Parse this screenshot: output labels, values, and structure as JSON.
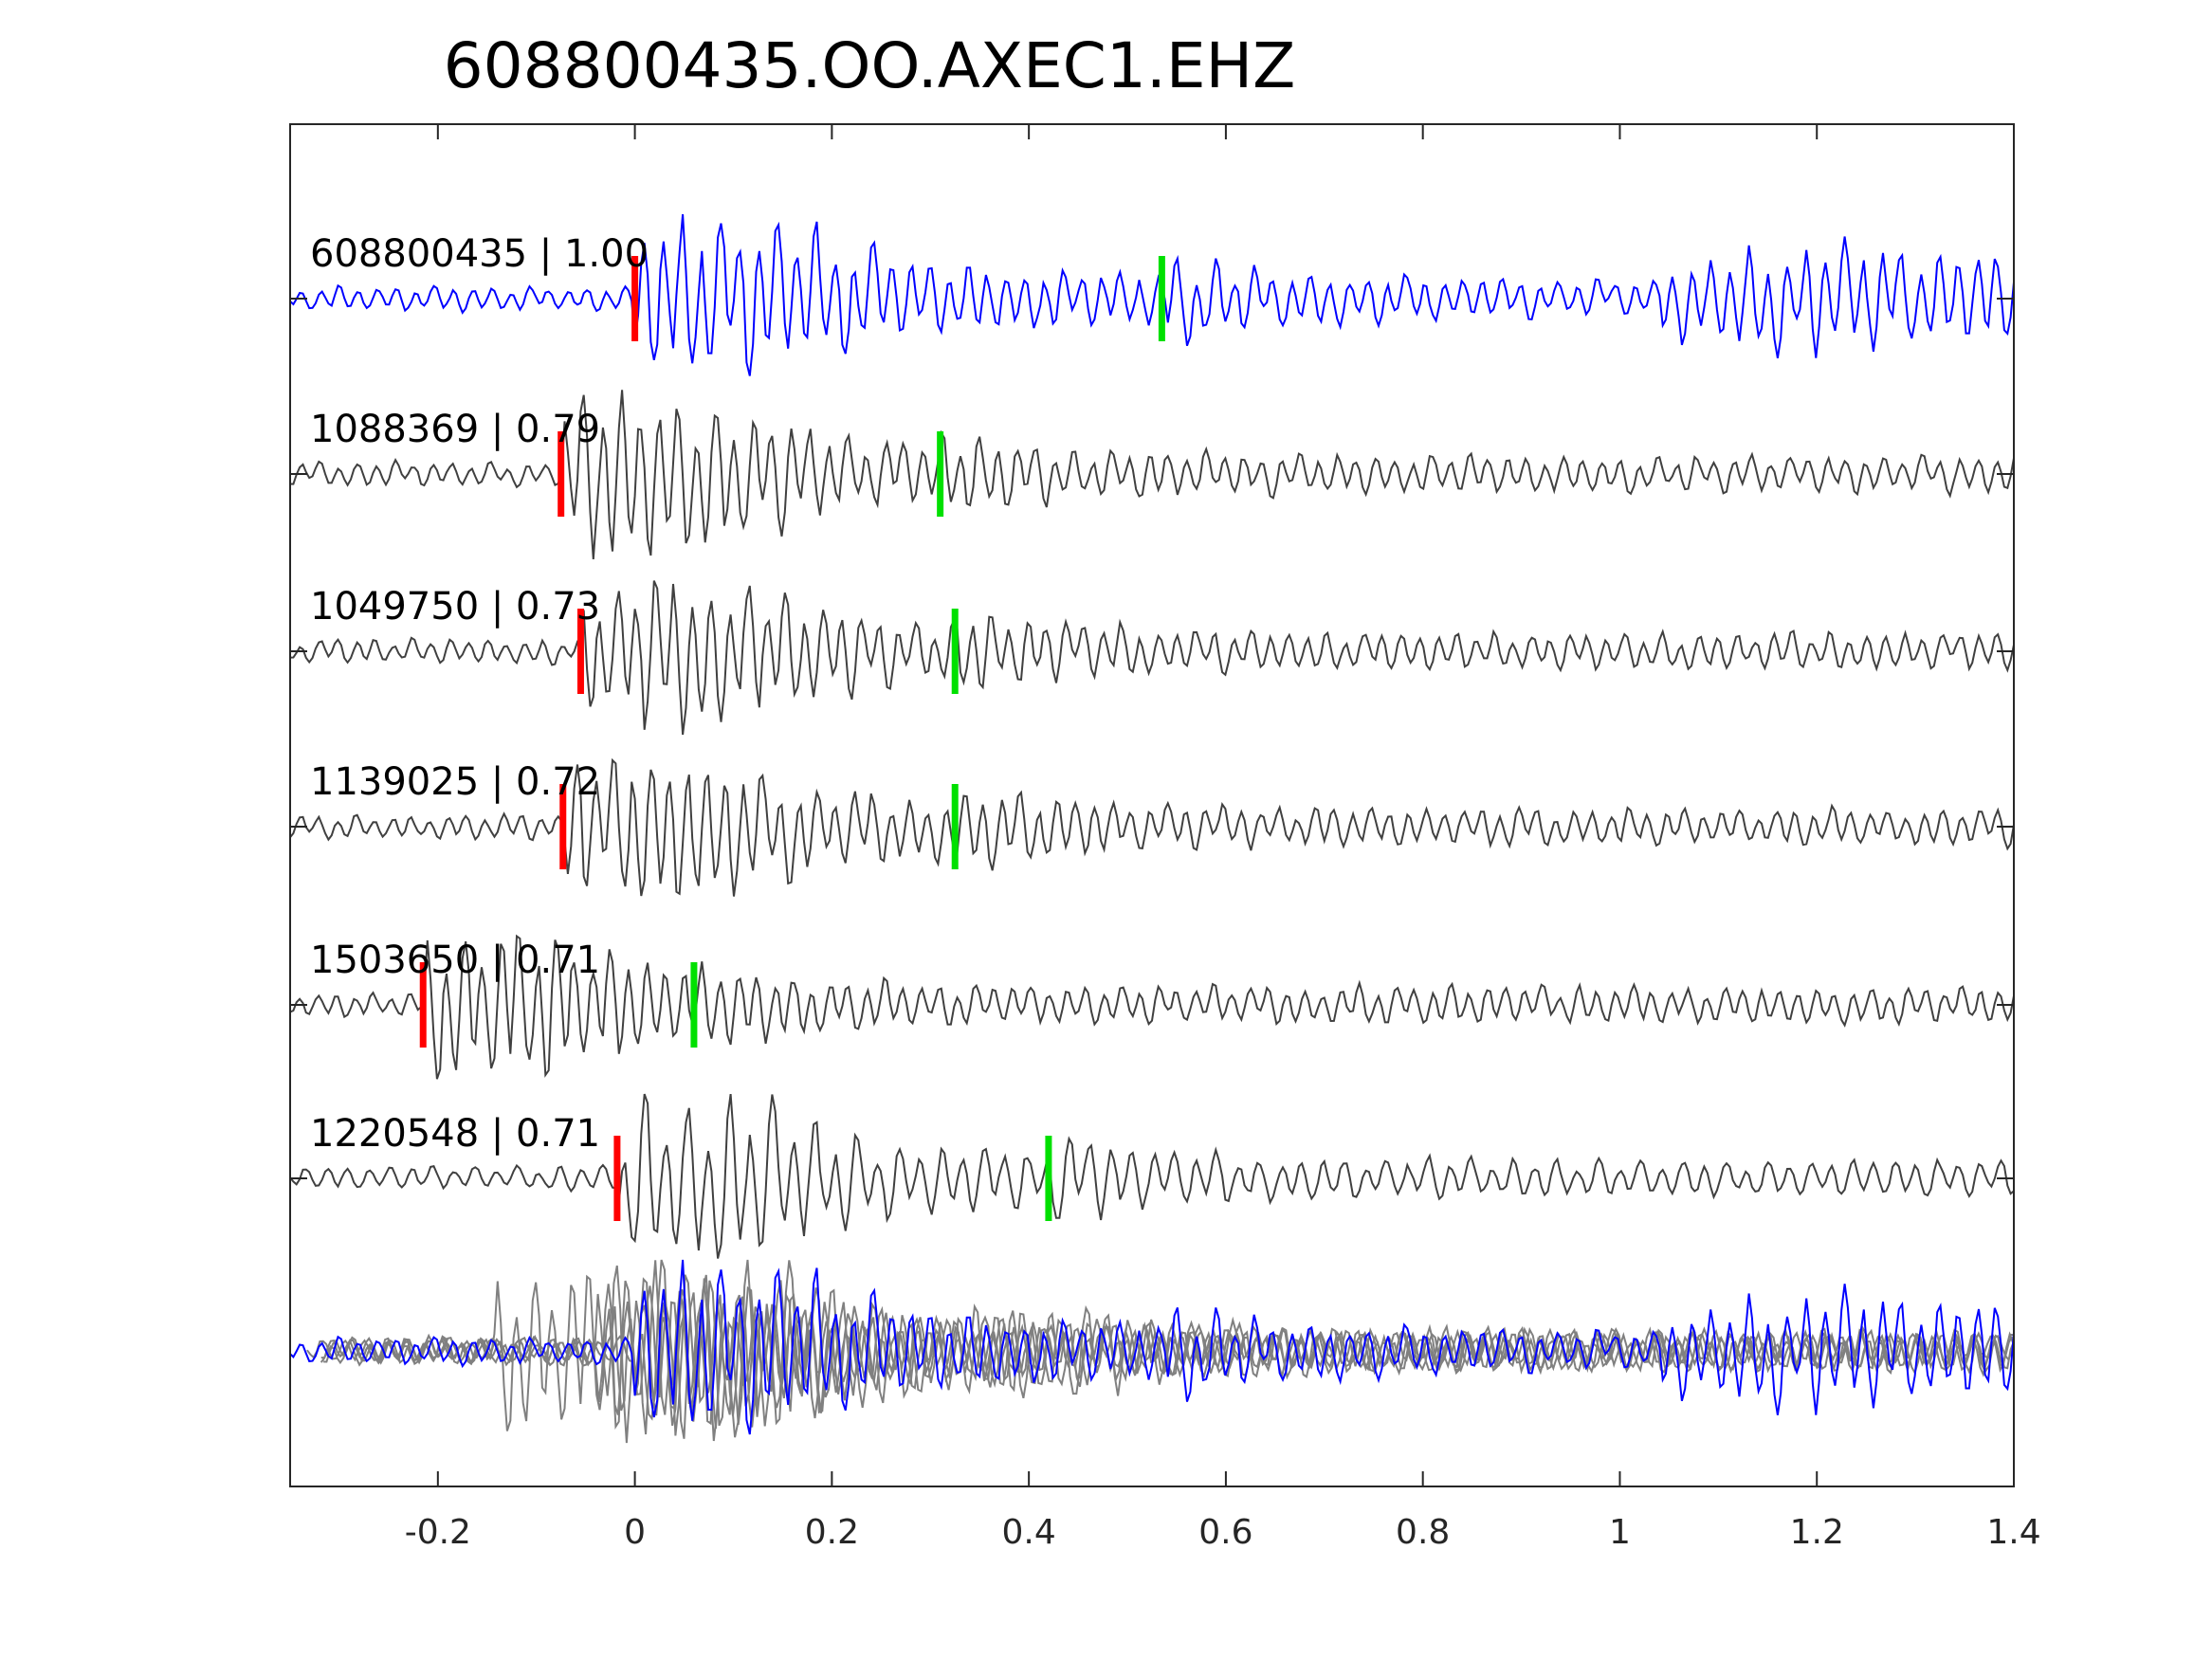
{
  "chart_data": {
    "type": "line",
    "title": "608800435.OO.AXEC1.EHZ",
    "xlabel": "",
    "ylabel": "",
    "xlim": [
      -0.35,
      1.4
    ],
    "x_ticks": [
      -0.2,
      0,
      0.2,
      0.4,
      0.6,
      0.8,
      1,
      1.2,
      1.4
    ],
    "x_tick_labels": [
      "-0.2",
      "0",
      "0.2",
      "0.4",
      "0.6",
      "0.8",
      "1",
      "1.2",
      "1.4"
    ],
    "grid": false,
    "legend": "none",
    "colors": {
      "template": "#0000ff",
      "match": "#404040",
      "overlay_match": "#808080",
      "p_pick": "#ff0000",
      "s_pick": "#00e000",
      "axes": "#262626"
    },
    "series": [
      {
        "label": "608800435 | 1.00",
        "p_pick": 0.0,
        "s_pick": 0.535,
        "color": "#0000ff"
      },
      {
        "label": "1088369 | 0.79",
        "p_pick": -0.075,
        "s_pick": 0.31,
        "color": "#404040"
      },
      {
        "label": "1049750 | 0.73",
        "p_pick": -0.055,
        "s_pick": 0.325,
        "color": "#404040"
      },
      {
        "label": "1139025 | 0.72",
        "p_pick": -0.073,
        "s_pick": 0.325,
        "color": "#404040"
      },
      {
        "label": "1503650 | 0.71",
        "p_pick": -0.215,
        "s_pick": 0.06,
        "color": "#404040"
      },
      {
        "label": "1220548 | 0.71",
        "p_pick": -0.018,
        "s_pick": 0.42,
        "color": "#404040"
      }
    ]
  }
}
